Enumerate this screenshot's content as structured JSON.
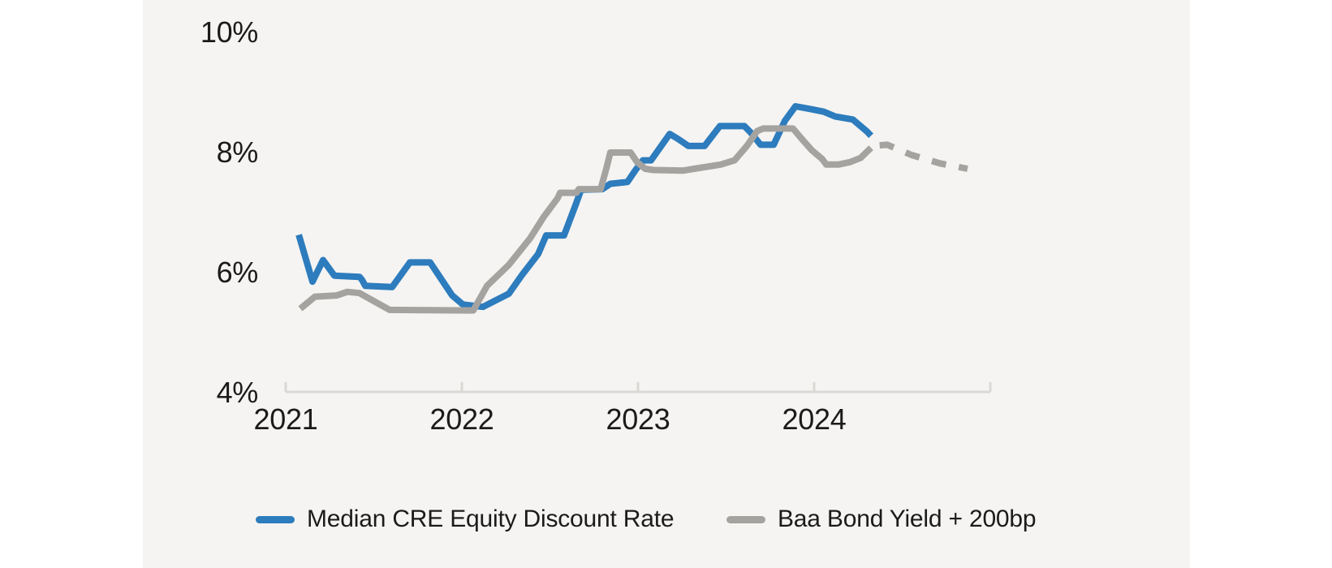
{
  "chart_data": {
    "type": "line",
    "title": "",
    "x_unit": "years since Jan 2021",
    "y_unit": "percent",
    "xlim_years": [
      2021,
      2025
    ],
    "ylim": [
      4,
      10
    ],
    "grid": "none",
    "legend_position": "bottom",
    "axis_color": "#dbd9d6",
    "x_tick_labels": [
      "2021",
      "2022",
      "2023",
      "2024"
    ],
    "x_axis_tick_years": [
      2021,
      2022,
      2023,
      2024,
      2025
    ],
    "y_tick_labels": [
      "10%",
      "8%",
      "6%",
      "4%"
    ],
    "y_tick_values": [
      10,
      8,
      6,
      4
    ],
    "series": [
      {
        "name": "Median CRE Equity Discount Rate",
        "color": "#2d7cbd",
        "style": "solid",
        "points": [
          [
            0.074,
            6.63
          ],
          [
            0.152,
            5.85
          ],
          [
            0.212,
            6.21
          ],
          [
            0.276,
            5.95
          ],
          [
            0.419,
            5.93
          ],
          [
            0.433,
            5.88
          ],
          [
            0.452,
            5.78
          ],
          [
            0.604,
            5.76
          ],
          [
            0.705,
            6.17
          ],
          [
            0.82,
            6.17
          ],
          [
            0.945,
            5.62
          ],
          [
            1.005,
            5.47
          ],
          [
            1.12,
            5.43
          ],
          [
            1.267,
            5.65
          ],
          [
            1.341,
            5.96
          ],
          [
            1.433,
            6.31
          ],
          [
            1.479,
            6.62
          ],
          [
            1.58,
            6.62
          ],
          [
            1.65,
            7.16
          ],
          [
            1.677,
            7.38
          ],
          [
            1.797,
            7.39
          ],
          [
            1.843,
            7.48
          ],
          [
            1.94,
            7.51
          ],
          [
            1.986,
            7.71
          ],
          [
            2.028,
            7.87
          ],
          [
            2.074,
            7.87
          ],
          [
            2.18,
            8.31
          ],
          [
            2.226,
            8.23
          ],
          [
            2.286,
            8.11
          ],
          [
            2.378,
            8.11
          ],
          [
            2.465,
            8.44
          ],
          [
            2.604,
            8.44
          ],
          [
            2.641,
            8.33
          ],
          [
            2.696,
            8.13
          ],
          [
            2.77,
            8.13
          ],
          [
            2.834,
            8.53
          ],
          [
            2.894,
            8.77
          ],
          [
            2.986,
            8.72
          ],
          [
            3.055,
            8.68
          ],
          [
            3.12,
            8.6
          ],
          [
            3.22,
            8.55
          ],
          [
            3.3,
            8.35
          ],
          [
            3.323,
            8.28
          ]
        ]
      },
      {
        "name": "Baa Bond Yield + 200bp",
        "color": "#a5a3a0",
        "style": "solid",
        "points": [
          [
            0.083,
            5.4
          ],
          [
            0.166,
            5.6
          ],
          [
            0.29,
            5.62
          ],
          [
            0.35,
            5.68
          ],
          [
            0.419,
            5.66
          ],
          [
            0.59,
            5.38
          ],
          [
            1.065,
            5.37
          ],
          [
            1.143,
            5.78
          ],
          [
            1.267,
            6.13
          ],
          [
            1.387,
            6.57
          ],
          [
            1.465,
            6.93
          ],
          [
            1.544,
            7.24
          ],
          [
            1.558,
            7.33
          ],
          [
            1.65,
            7.33
          ],
          [
            1.664,
            7.39
          ],
          [
            1.788,
            7.39
          ],
          [
            1.82,
            7.73
          ],
          [
            1.843,
            8.0
          ],
          [
            1.958,
            8.0
          ],
          [
            1.995,
            7.84
          ],
          [
            2.041,
            7.73
          ],
          [
            2.088,
            7.71
          ],
          [
            2.258,
            7.7
          ],
          [
            2.318,
            7.73
          ],
          [
            2.47,
            7.8
          ],
          [
            2.548,
            7.87
          ],
          [
            2.618,
            8.11
          ],
          [
            2.677,
            8.36
          ],
          [
            2.71,
            8.4
          ],
          [
            2.88,
            8.4
          ],
          [
            2.926,
            8.24
          ],
          [
            2.986,
            8.04
          ],
          [
            3.046,
            7.89
          ],
          [
            3.069,
            7.8
          ],
          [
            3.138,
            7.8
          ],
          [
            3.203,
            7.84
          ],
          [
            3.263,
            7.91
          ],
          [
            3.323,
            8.08
          ]
        ]
      },
      {
        "name": "Baa Bond Yield + 200bp (dashed forecast)",
        "color": "#a5a3a0",
        "style": "dashed",
        "points": [
          [
            3.372,
            8.12
          ],
          [
            3.415,
            8.13
          ],
          [
            3.553,
            7.96
          ],
          [
            3.714,
            7.82
          ],
          [
            3.871,
            7.73
          ]
        ]
      }
    ],
    "legend": [
      {
        "label": "Median CRE Equity Discount Rate",
        "color": "#2d7cbd"
      },
      {
        "label": "Baa Bond Yield + 200bp",
        "color": "#a5a3a0"
      }
    ]
  }
}
